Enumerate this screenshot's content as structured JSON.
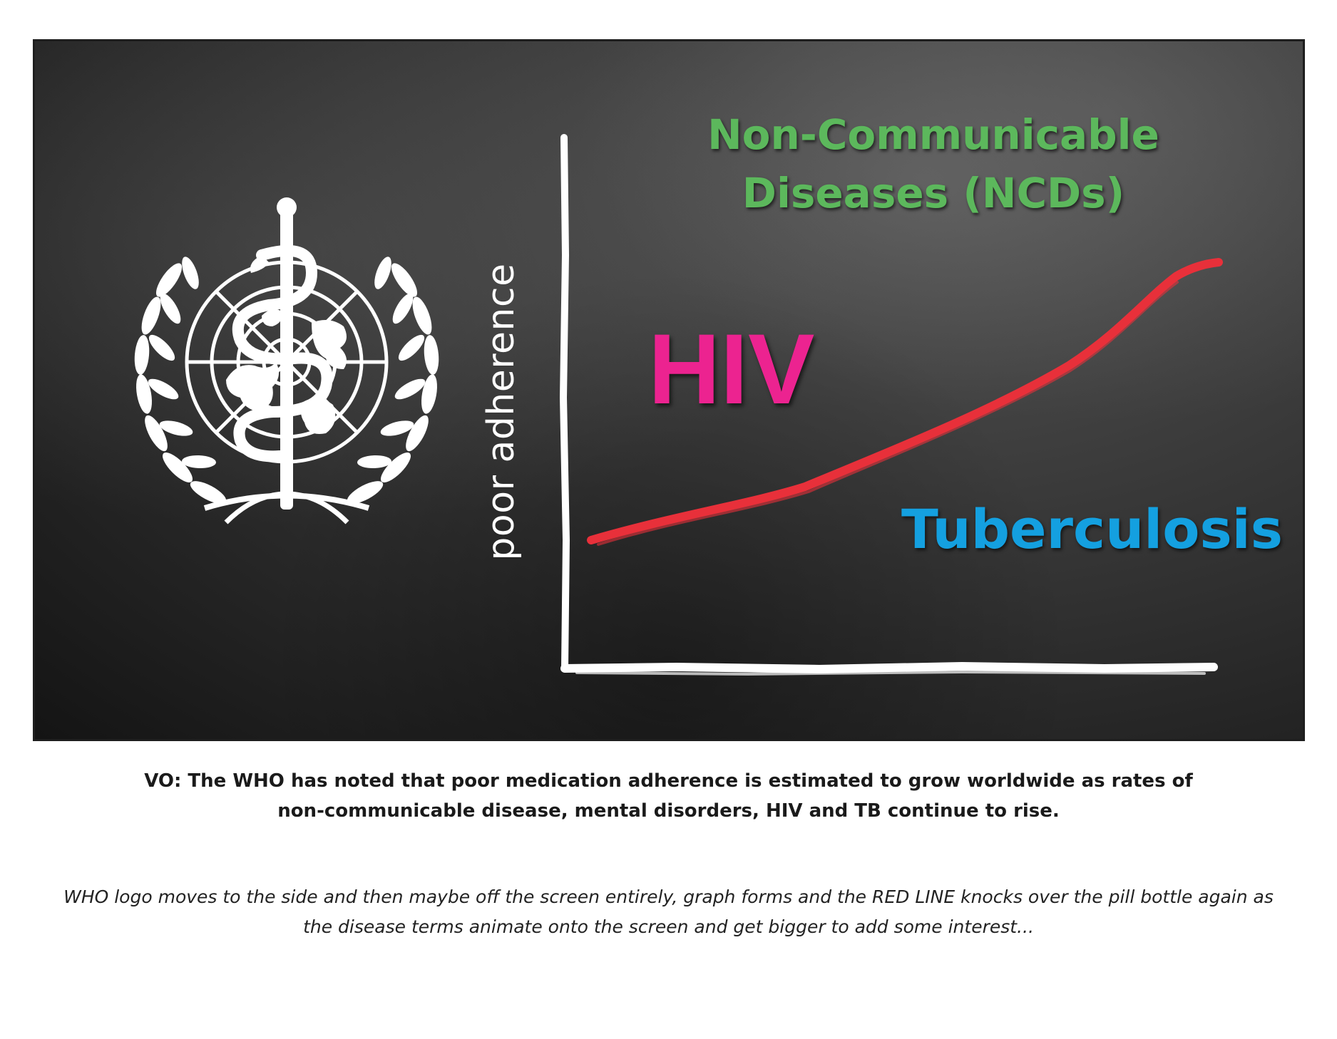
{
  "panel": {
    "background": "#3a3a3a",
    "logo": {
      "icon": "who-emblem-icon",
      "color": "#ffffff"
    },
    "y_axis_label": "poor adherence",
    "trend_line_color": "#e8303a",
    "labels": {
      "ncd": {
        "line1": "Non-Communicable",
        "line2": "Diseases (NCDs)",
        "color": "#5cb85c"
      },
      "hiv": {
        "text": "HIV",
        "color": "#ec2390"
      },
      "tb": {
        "text": "Tuberculosis",
        "color": "#14a0e0"
      }
    }
  },
  "captions": {
    "vo_line1": "VO: The WHO has noted that poor medication adherence is estimated to grow worldwide as rates of",
    "vo_line2": "non-communicable disease, mental disorders, HIV and TB continue to rise.",
    "direction_line1": "WHO logo moves to the side and then maybe off the screen entirely, graph forms and the RED LINE knocks over the pill bottle again as",
    "direction_line2": "the disease terms animate onto the screen and get bigger to add some interest..."
  }
}
